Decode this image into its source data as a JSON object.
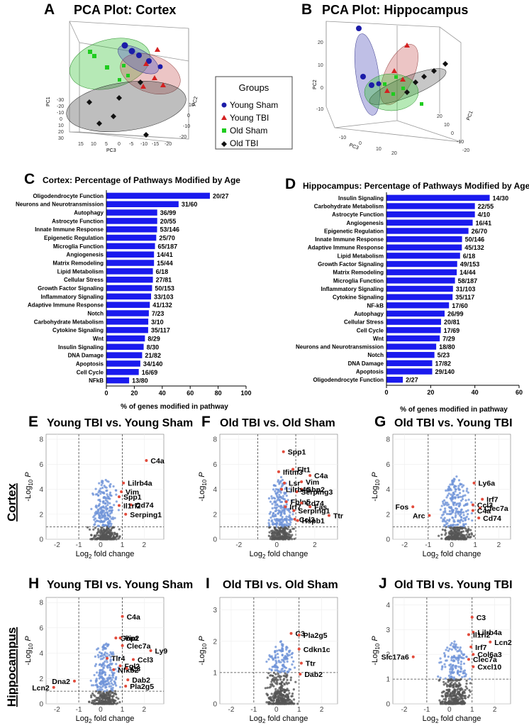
{
  "colors": {
    "young_sham": "#1c1ca8",
    "young_tbi": "#d42020",
    "old_sham": "#1fcc1f",
    "old_tbi": "#111111",
    "bar": "#1a1aee",
    "volcano_sig": "#6f93d8",
    "volcano_ns": "#555555",
    "volcano_hit": "#e24a3a"
  },
  "legend": {
    "title": "Groups",
    "items": [
      "Young Sham",
      "Young TBI",
      "Old Sham",
      "Old TBI"
    ]
  },
  "pca_panels": [
    {
      "letter": "A",
      "title": "PCA Plot: Cortex",
      "axis_labels": [
        "PC1",
        "PC2",
        "PC3"
      ],
      "ticks_left": [
        "-30",
        "-20",
        "-10",
        "0",
        "10",
        "20",
        "30"
      ],
      "ticks_bottom": [
        "15",
        "10",
        "5",
        "0",
        "-5",
        "-10",
        "-15",
        "-20"
      ],
      "ticks_right": [
        "-20",
        "-10",
        "0",
        "10"
      ]
    },
    {
      "letter": "B",
      "title": "PCA Plot: Hippocampus",
      "axis_labels": [
        "PC2",
        "PC3",
        "PC1"
      ],
      "ticks_left": [
        "20",
        "10",
        "0",
        "-10"
      ],
      "ticks_bottom": [
        "-10",
        "0",
        "10",
        "20"
      ],
      "ticks_right": [
        "20",
        "10",
        "0",
        "-10",
        "-20"
      ]
    }
  ],
  "chart_data": [
    {
      "type": "bar",
      "letter": "C",
      "title": "Cortex: Percentage of Pathways Modified by Age",
      "xlabel": "% of genes modified in pathway",
      "xlim": [
        0,
        100
      ],
      "ticks": [
        "0",
        "20",
        "40",
        "60",
        "80",
        "100"
      ],
      "categories": [
        "Oligodendrocyte Function",
        "Neurons and Neurotransmission",
        "Autophagy",
        "Astrocyte Function",
        "Innate Immune Response",
        "Epigenetic Regulation",
        "Microglia Function",
        "Angiogenesis",
        "Matrix Remodeling",
        "Lipid Metabolism",
        "Cellular Stress",
        "Growth Factor Signaling",
        "Inflammatory Signaling",
        "Adaptive Immune Response",
        "Notch",
        "Carbohydrate Metabolism",
        "Cytokine Signaling",
        "Wnt",
        "Insulin Signaling",
        "DNA Damage",
        "Apoptosis",
        "Cell Cycle",
        "NFkB"
      ],
      "labels": [
        "20/27",
        "31/60",
        "36/99",
        "20/55",
        "53/146",
        "25/70",
        "65/187",
        "14/41",
        "15/44",
        "6/18",
        "27/81",
        "50/153",
        "33/103",
        "41/132",
        "7/23",
        "3/10",
        "35/117",
        "8/29",
        "8/30",
        "21/82",
        "34/140",
        "16/69",
        "13/80"
      ],
      "values": [
        74.1,
        51.7,
        36.4,
        36.4,
        36.3,
        35.7,
        34.8,
        34.1,
        34.1,
        33.3,
        33.3,
        32.7,
        32.0,
        31.1,
        30.4,
        30.0,
        29.9,
        27.6,
        26.7,
        25.6,
        24.3,
        23.2,
        16.3
      ]
    },
    {
      "type": "bar",
      "letter": "D",
      "title": "Hippocampus: Percentage of Pathways Modified by Age",
      "xlabel": "% of genes modified in pathway",
      "xlim": [
        0,
        60
      ],
      "ticks": [
        "0",
        "20",
        "40",
        "60"
      ],
      "categories": [
        "Insulin Signaling",
        "Carbohydrate Metabolism",
        "Astrocyte Function",
        "Angiogenesis",
        "Epigenetic Regulation",
        "Innate Immune Response",
        "Adaptive Immune Response",
        "Lipid Metabolism",
        "Growth Factor Signaling",
        "Matrix Remodeling",
        "Microglia Function",
        "Inflammatory Signaling",
        "Cytokine Signaling",
        "NF-kB",
        "Autophagy",
        "Cellular Stress",
        "Cell Cycle",
        "Wnt",
        "Neurons and Neurotransmission",
        "Notch",
        "DNA Damage",
        "Apoptosis",
        "Oligodendrocyte Function"
      ],
      "labels": [
        "14/30",
        "22/55",
        "4/10",
        "16/41",
        "26/70",
        "50/146",
        "45/132",
        "6/18",
        "49/153",
        "14/44",
        "58/187",
        "31/103",
        "35/117",
        "17/60",
        "26/99",
        "20/81",
        "17/69",
        "7/29",
        "18/80",
        "5/23",
        "17/82",
        "29/140",
        "2/27"
      ],
      "values": [
        46.7,
        40.0,
        40.0,
        39.0,
        37.1,
        34.2,
        34.1,
        33.3,
        32.0,
        31.8,
        31.0,
        30.1,
        29.9,
        28.3,
        26.3,
        24.7,
        24.6,
        24.1,
        22.5,
        21.7,
        20.7,
        20.7,
        7.4
      ]
    },
    {
      "type": "scatter",
      "letter": "E",
      "title": "Young TBI vs. Young Sham",
      "xlabel": "Log2 fold change",
      "ylabel": "-Log10 P",
      "xlim": [
        -2.5,
        2.9
      ],
      "ylim": [
        0,
        8.4
      ],
      "xticks": [
        -2,
        -1,
        0,
        1,
        2
      ],
      "yticks": [
        0,
        2,
        4,
        6,
        8
      ],
      "thresholds": {
        "x": [
          -1,
          1
        ],
        "y": 1
      },
      "genes": [
        {
          "name": "C4a",
          "x": 2.1,
          "y": 6.3
        },
        {
          "name": "Lilrb4a",
          "x": 1.05,
          "y": 4.5
        },
        {
          "name": "Vim",
          "x": 0.95,
          "y": 3.8
        },
        {
          "name": "Spp1",
          "x": 0.85,
          "y": 3.4
        },
        {
          "name": "Cd74",
          "x": 1.4,
          "y": 2.75
        },
        {
          "name": "Il1rl2",
          "x": 0.85,
          "y": 2.7
        },
        {
          "name": "Serping1",
          "x": 1.15,
          "y": 2.0
        }
      ]
    },
    {
      "type": "scatter",
      "letter": "F",
      "title": "Old TBI vs. Old Sham",
      "xlabel": "Log2 fold change",
      "ylabel": "-Log10 P",
      "xlim": [
        -3,
        3.2
      ],
      "ylim": [
        0,
        8.4
      ],
      "xticks": [
        -2,
        0,
        2
      ],
      "yticks": [
        0,
        2,
        4,
        6,
        8
      ],
      "thresholds": {
        "x": [
          -1,
          1
        ],
        "y": 1
      },
      "genes": [
        {
          "name": "Spp1",
          "x": 0.35,
          "y": 7.0
        },
        {
          "name": "Flt1",
          "x": 0.85,
          "y": 5.6
        },
        {
          "name": "Ifitm3",
          "x": 0.1,
          "y": 5.4
        },
        {
          "name": "C4a",
          "x": 1.75,
          "y": 5.1
        },
        {
          "name": "Vim",
          "x": 1.3,
          "y": 4.6
        },
        {
          "name": "Gbp2",
          "x": 1.3,
          "y": 4.0
        },
        {
          "name": "Lsr",
          "x": 0.4,
          "y": 4.5
        },
        {
          "name": "Serping3",
          "x": 1.05,
          "y": 3.8
        },
        {
          "name": "Lilrb4a",
          "x": 0.25,
          "y": 4.0
        },
        {
          "name": "Fbln5",
          "x": 0.5,
          "y": 3.0
        },
        {
          "name": "Cd74",
          "x": 1.3,
          "y": 2.9
        },
        {
          "name": "Fas",
          "x": 1.75,
          "y": 2.6
        },
        {
          "name": "Irf7",
          "x": 0.45,
          "y": 2.6
        },
        {
          "name": "Serping1",
          "x": 0.9,
          "y": 2.3
        },
        {
          "name": "Ccl3",
          "x": 0.95,
          "y": 1.6
        },
        {
          "name": "Ttr",
          "x": 2.75,
          "y": 1.9
        },
        {
          "name": "Hspb1",
          "x": 1.1,
          "y": 1.5
        }
      ]
    },
    {
      "type": "scatter",
      "letter": "G",
      "title": "Old TBI vs. Young TBI",
      "xlabel": "Log2 fold change",
      "ylabel": "-Log10 P",
      "xlim": [
        -2.5,
        2.5
      ],
      "ylim": [
        0,
        8.4
      ],
      "xticks": [
        -2,
        -1,
        0,
        1,
        2
      ],
      "yticks": [
        0,
        2,
        4,
        6,
        8
      ],
      "thresholds": {
        "x": [
          -1,
          1
        ],
        "y": 1
      },
      "genes": [
        {
          "name": "Ly6a",
          "x": 0.95,
          "y": 4.5
        },
        {
          "name": "Irf7",
          "x": 1.3,
          "y": 3.2
        },
        {
          "name": "Ccl3",
          "x": 0.9,
          "y": 2.75
        },
        {
          "name": "Fos",
          "x": -1.65,
          "y": 2.6
        },
        {
          "name": "Clec7a",
          "x": 1.2,
          "y": 2.5
        },
        {
          "name": "C4a",
          "x": 0.9,
          "y": 2.3
        },
        {
          "name": "Arc",
          "x": -0.95,
          "y": 1.9
        },
        {
          "name": "Cd74",
          "x": 1.15,
          "y": 1.7
        }
      ]
    },
    {
      "type": "scatter",
      "letter": "H",
      "title": "Young TBI vs. Young Sham",
      "xlabel": "Log2 fold change",
      "ylabel": "-Log10 P",
      "xlim": [
        -2.5,
        2.9
      ],
      "ylim": [
        0,
        8.4
      ],
      "xticks": [
        -2,
        -1,
        0,
        1,
        2
      ],
      "yticks": [
        0,
        2,
        4,
        6,
        8
      ],
      "thresholds": {
        "x": [
          -1,
          1
        ],
        "y": 1
      },
      "genes": [
        {
          "name": "C4a",
          "x": 1.0,
          "y": 6.9
        },
        {
          "name": "Gbp2",
          "x": 0.7,
          "y": 5.2
        },
        {
          "name": "Vim",
          "x": 0.9,
          "y": 5.2
        },
        {
          "name": "Ly9",
          "x": 2.3,
          "y": 4.2
        },
        {
          "name": "Clec7a",
          "x": 1.0,
          "y": 4.6
        },
        {
          "name": "Tlr4",
          "x": 0.3,
          "y": 3.6
        },
        {
          "name": "Ccl3",
          "x": 1.5,
          "y": 3.5
        },
        {
          "name": "Fgl2",
          "x": 0.9,
          "y": 3.0
        },
        {
          "name": "Nfkb2",
          "x": 0.6,
          "y": 2.7
        },
        {
          "name": "C3",
          "x": 1.2,
          "y": 2.8
        },
        {
          "name": "Dna2",
          "x": -1.2,
          "y": 1.8
        },
        {
          "name": "Dab2",
          "x": 1.25,
          "y": 1.9
        },
        {
          "name": "Lcn2",
          "x": -2.15,
          "y": 1.3
        },
        {
          "name": "Pla2g5",
          "x": 1.15,
          "y": 1.4
        }
      ]
    },
    {
      "type": "scatter",
      "letter": "I",
      "title": "Old TBI vs. Old Sham",
      "xlabel": "Log2 fold change",
      "ylabel": "-Log10 P",
      "xlim": [
        -2.5,
        2.7
      ],
      "ylim": [
        0,
        3.4
      ],
      "xticks": [
        -2,
        -1,
        0,
        1,
        2
      ],
      "yticks": [
        0,
        1,
        2,
        3
      ],
      "thresholds": {
        "x": [
          -1,
          1
        ],
        "y": 1
      },
      "genes": [
        {
          "name": "C3",
          "x": 0.65,
          "y": 2.25
        },
        {
          "name": "Pla2g5",
          "x": 1.0,
          "y": 2.2
        },
        {
          "name": "Cdkn1c",
          "x": 1.0,
          "y": 1.75
        },
        {
          "name": "Ttr",
          "x": 1.1,
          "y": 1.3
        },
        {
          "name": "Dab2",
          "x": 1.05,
          "y": 0.95
        }
      ]
    },
    {
      "type": "scatter",
      "letter": "J",
      "title": "Old TBI vs. Young TBI",
      "xlabel": "Log2 fold change",
      "ylabel": "-Log10 P",
      "xlim": [
        -2.5,
        2.7
      ],
      "ylim": [
        0,
        4.3
      ],
      "xticks": [
        -2,
        -1,
        0,
        1,
        2
      ],
      "yticks": [
        0,
        1,
        2,
        3,
        4
      ],
      "thresholds": {
        "x": [
          -1,
          1
        ],
        "y": 1
      },
      "genes": [
        {
          "name": "C3",
          "x": 1.0,
          "y": 3.5
        },
        {
          "name": "Lilrb4a",
          "x": 1.05,
          "y": 2.9
        },
        {
          "name": "Il1rl2",
          "x": 0.85,
          "y": 2.8
        },
        {
          "name": "Lcn2",
          "x": 1.8,
          "y": 2.5
        },
        {
          "name": "Irf7",
          "x": 0.95,
          "y": 2.3
        },
        {
          "name": "Col6a3",
          "x": 1.05,
          "y": 2.0
        },
        {
          "name": "Clec7a",
          "x": 0.85,
          "y": 1.8
        },
        {
          "name": "Slc17a6",
          "x": -1.6,
          "y": 1.9
        },
        {
          "name": "Cxcl10",
          "x": 1.05,
          "y": 1.5
        }
      ]
    }
  ],
  "row_labels": {
    "cortex": "Cortex",
    "hippocampus": "Hippocampus"
  }
}
